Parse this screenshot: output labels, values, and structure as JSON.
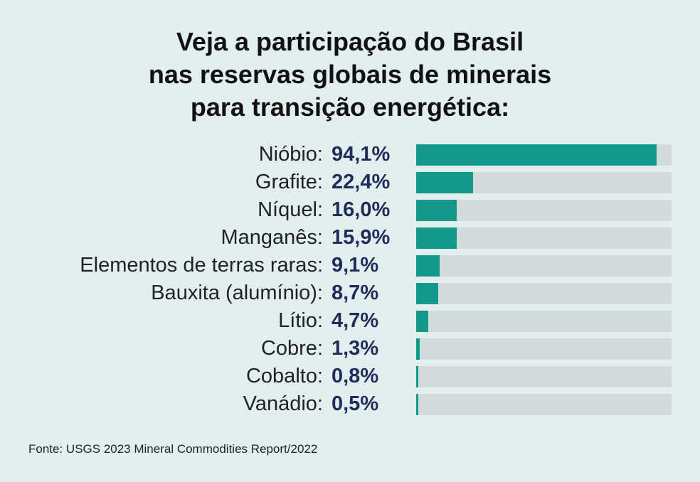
{
  "title_lines": [
    "Veja a participação do Brasil",
    "nas reservas globais de minerais",
    "para transição energética:"
  ],
  "chart_data": {
    "type": "bar",
    "orientation": "horizontal",
    "categories": [
      "Nióbio:",
      "Grafite:",
      "Níquel:",
      "Manganês:",
      "Elementos de terras raras:",
      "Bauxita (alumínio):",
      "Lítio:",
      "Cobre:",
      "Cobalto:",
      "Vanádio:"
    ],
    "values": [
      94.1,
      22.4,
      16.0,
      15.9,
      9.1,
      8.7,
      4.7,
      1.3,
      0.8,
      0.5
    ],
    "value_labels": [
      "94,1%",
      "22,4%",
      "16,0%",
      "15,9%",
      "9,1%",
      "8,7%",
      "4,7%",
      "1,3%",
      "0,8%",
      "0,5%"
    ],
    "xlim": [
      0,
      100
    ],
    "grid": false,
    "bar_color": "#12998a",
    "track_color": "#d3dcdb"
  },
  "source": "Fonte: USGS 2023 Mineral Commodities Report/2022",
  "colors": {
    "background": "#e3efef",
    "value_text": "#1e2d5a"
  }
}
